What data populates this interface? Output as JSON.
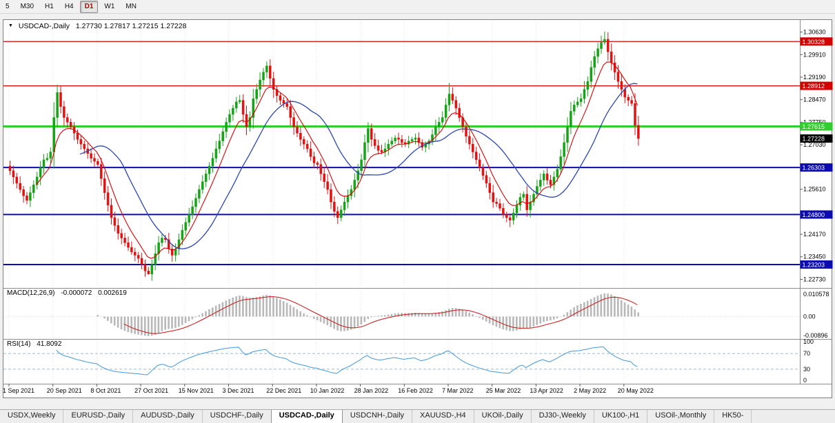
{
  "toolbar": {
    "timeframes": [
      "5",
      "M30",
      "H1",
      "H4",
      "D1",
      "W1",
      "MN"
    ],
    "active": "D1"
  },
  "chart": {
    "symbol_title": "USDCAD-,Daily",
    "ohlc_text": "1.27730 1.27817 1.27215 1.27228",
    "dropdown_icon": "▼"
  },
  "price_axis": {
    "ticks": [
      "1.30630",
      "1.29910",
      "1.29190",
      "1.28470",
      "1.27750",
      "1.27030",
      "1.25610",
      "1.24170",
      "1.23450",
      "1.22730"
    ]
  },
  "levels": [
    {
      "value": 1.30328,
      "label": "1.30328",
      "color": "#d40000",
      "width": 1.2
    },
    {
      "value": 1.28912,
      "label": "1.28912",
      "color": "#d40000",
      "width": 1.2
    },
    {
      "value": 1.27615,
      "label": "1.27615",
      "color": "#2fce2f",
      "width": 3
    },
    {
      "value": 1.26303,
      "label": "1.26303",
      "color": "#0b0bb0",
      "width": 2
    },
    {
      "value": 1.248,
      "label": "1.24800",
      "color": "#0b0bb0",
      "width": 2
    },
    {
      "value": 1.23203,
      "label": "1.23203",
      "color": "#0b0bb0",
      "width": 2
    }
  ],
  "current_price": {
    "value": 1.27228,
    "label": "1.27228",
    "bg": "#000000"
  },
  "macd": {
    "title": "MACD(12,26,9)",
    "value_main": "-0.000072",
    "value_signal": "0.002619",
    "axis": [
      "0.010578",
      "0.00",
      "-0.00896"
    ],
    "hist_color": "#b8b8b8",
    "signal_color": "#cc1111"
  },
  "rsi": {
    "title": "RSI(14)",
    "value": "41.8092",
    "axis": [
      "100",
      "70",
      "30",
      "0"
    ],
    "levels": [
      70,
      30
    ],
    "line_color": "#3f97e0"
  },
  "x_axis": {
    "dates": [
      "1 Sep 2021",
      "20 Sep 2021",
      "8 Oct 2021",
      "27 Oct 2021",
      "15 Nov 2021",
      "3 Dec 2021",
      "22 Dec 2021",
      "10 Jan 2022",
      "28 Jan 2022",
      "16 Feb 2022",
      "7 Mar 2022",
      "25 Mar 2022",
      "13 Apr 2022",
      "2 May 2022",
      "20 May 2022"
    ],
    "candles_per_tick": 13
  },
  "tabs": {
    "items": [
      "USDX,Weekly",
      "EURUSD-,Daily",
      "AUDUSD-,Daily",
      "USDCHF-,Daily",
      "USDCAD-,Daily",
      "USDCNH-,Daily",
      "XAUUSD-,H4",
      "UKOil-,Daily",
      "DJ30-,Weekly",
      "UK100-,H1",
      "USOil-,Monthly",
      "HK50-"
    ],
    "active_index": 4
  },
  "colors": {
    "candle_up": "#17a317",
    "candle_down": "#e01212",
    "ma_fast": "#dd0000",
    "ma_slow": "#2a46b0"
  },
  "chart_data": {
    "type": "candlestick",
    "title": "USDCAD- Daily",
    "current_ohlc": {
      "open": 1.2773,
      "high": 1.27817,
      "low": 1.27215,
      "close": 1.27228
    },
    "y_range": [
      1.2252,
      1.3095
    ],
    "key_levels": [
      1.30328,
      1.28912,
      1.27615,
      1.26303,
      1.248,
      1.23203
    ],
    "closes": [
      1.262,
      1.26,
      1.258,
      1.256,
      1.254,
      1.2525,
      1.255,
      1.2575,
      1.26,
      1.263,
      1.2655,
      1.266,
      1.268,
      1.279,
      1.287,
      1.2825,
      1.279,
      1.2775,
      1.276,
      1.274,
      1.272,
      1.2705,
      1.269,
      1.2675,
      1.266,
      1.265,
      1.264,
      1.2595,
      1.255,
      1.251,
      1.247,
      1.2445,
      1.242,
      1.2405,
      1.239,
      1.2375,
      1.236,
      1.235,
      1.234,
      1.232,
      1.23,
      1.229,
      1.232,
      1.2355,
      1.239,
      1.2405,
      1.24,
      1.237,
      1.235,
      1.237,
      1.24,
      1.243,
      1.2455,
      1.248,
      1.2505,
      1.2532,
      1.256,
      1.2585,
      1.261,
      1.2635,
      1.266,
      1.269,
      1.2715,
      1.2745,
      1.2775,
      1.28,
      1.282,
      1.284,
      1.2845,
      1.28,
      1.276,
      1.279,
      1.285,
      1.288,
      1.291,
      1.2935,
      1.2955,
      1.2915,
      1.288,
      1.286,
      1.2845,
      1.2835,
      1.2825,
      1.279,
      1.276,
      1.274,
      1.272,
      1.2705,
      1.269,
      1.2665,
      1.2645,
      1.264,
      1.261,
      1.2585,
      1.256,
      1.252,
      1.249,
      1.247,
      1.2495,
      1.252,
      1.254,
      1.256,
      1.259,
      1.262,
      1.2655,
      1.271,
      1.2755,
      1.272,
      1.27,
      1.2685,
      1.268,
      1.269,
      1.2705,
      1.2715,
      1.2725,
      1.272,
      1.271,
      1.2705,
      1.2715,
      1.272,
      1.2725,
      1.271,
      1.2695,
      1.2705,
      1.2715,
      1.2735,
      1.276,
      1.2775,
      1.279,
      1.283,
      1.2865,
      1.2845,
      1.282,
      1.279,
      1.276,
      1.273,
      1.2705,
      1.268,
      1.2655,
      1.263,
      1.2605,
      1.258,
      1.255,
      1.252,
      1.2515,
      1.25,
      1.248,
      1.247,
      1.2462,
      1.2485,
      1.251,
      1.2535,
      1.2545,
      1.2495,
      1.252,
      1.2545,
      1.257,
      1.259,
      1.261,
      1.259,
      1.2575,
      1.26,
      1.2625,
      1.2665,
      1.271,
      1.276,
      1.281,
      1.283,
      1.284,
      1.285,
      1.288,
      1.2905,
      1.295,
      1.2985,
      1.301,
      1.303,
      1.304,
      1.3,
      1.2965,
      1.2935,
      1.2905,
      1.288,
      1.2855,
      1.2845,
      1.2835,
      1.2765,
      1.2723
    ],
    "wick_extremes": [
      {
        "i": 14,
        "high": 1.2895
      },
      {
        "i": 41,
        "low": 1.2288
      },
      {
        "i": 97,
        "low": 1.245
      },
      {
        "i": 106,
        "high": 1.2775
      },
      {
        "i": 130,
        "high": 1.29
      },
      {
        "i": 148,
        "low": 1.244
      },
      {
        "i": 176,
        "high": 1.3065
      }
    ],
    "indicators": {
      "macd": {
        "fast": 12,
        "slow": 26,
        "signal": 9,
        "last_main": -7.2e-05,
        "last_signal": 0.002619
      },
      "rsi": {
        "period": 14,
        "last": 41.8092
      },
      "moving_averages": [
        {
          "type": "EMA",
          "period": 8
        },
        {
          "type": "SMA",
          "period": 21
        }
      ]
    }
  }
}
